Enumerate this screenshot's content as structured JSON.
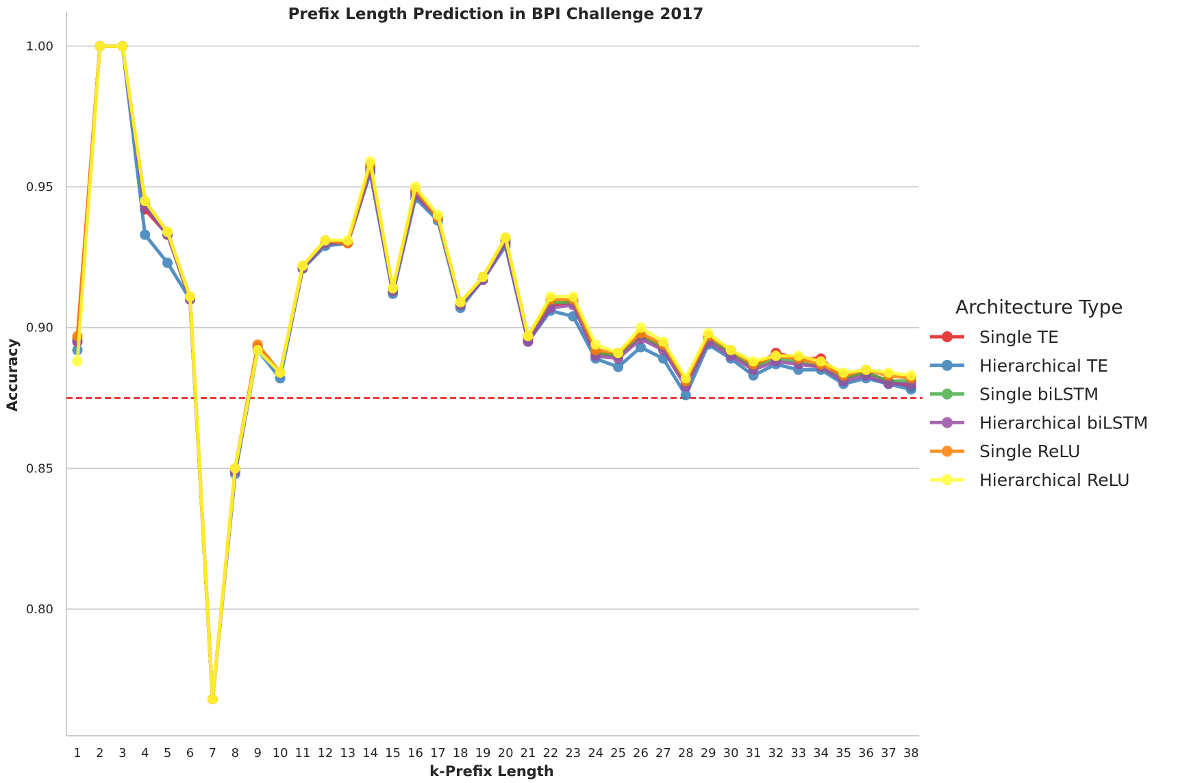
{
  "chart_data": {
    "type": "line",
    "title": "Prefix Length Prediction in BPI Challenge 2017",
    "xlabel": "k-Prefix Length",
    "ylabel": "Accuracy",
    "ylim": [
      0.755,
      1.012
    ],
    "yticks": [
      0.8,
      0.85,
      0.9,
      0.95,
      1.0
    ],
    "ytick_labels": [
      "0.80",
      "0.85",
      "0.90",
      "0.95",
      "1.00"
    ],
    "grid": "horizontal",
    "legend_title": "Architecture Type",
    "legend_position": "right",
    "reference_line": {
      "y": 0.875,
      "color": "#ee1111",
      "style": "dashed"
    },
    "x": [
      "1",
      "2",
      "3",
      "4",
      "5",
      "6",
      "7",
      "8",
      "9",
      "10",
      "11",
      "12",
      "13",
      "14",
      "15",
      "16",
      "17",
      "18",
      "19",
      "20",
      "21",
      "22",
      "23",
      "24",
      "25",
      "26",
      "27",
      "28",
      "29",
      "30",
      "31",
      "32",
      "33",
      "34",
      "35",
      "36",
      "37",
      "38"
    ],
    "series": [
      {
        "name": "Single TE",
        "color": "#e41a1c",
        "values": [
          0.895,
          1.0,
          1.0,
          0.942,
          0.933,
          0.91,
          0.768,
          0.849,
          0.893,
          0.884,
          0.921,
          0.93,
          0.93,
          0.957,
          0.913,
          0.948,
          0.939,
          0.908,
          0.917,
          0.931,
          0.896,
          0.908,
          0.909,
          0.891,
          0.89,
          0.897,
          0.893,
          0.88,
          0.896,
          0.891,
          0.886,
          0.891,
          0.889,
          0.889,
          0.882,
          0.884,
          0.881,
          0.879
        ]
      },
      {
        "name": "Hierarchical TE",
        "color": "#377eb8",
        "values": [
          0.892,
          1.0,
          1.0,
          0.933,
          0.923,
          0.91,
          0.768,
          0.848,
          0.892,
          0.882,
          0.921,
          0.929,
          0.93,
          0.955,
          0.912,
          0.946,
          0.938,
          0.907,
          0.917,
          0.929,
          0.895,
          0.906,
          0.904,
          0.889,
          0.886,
          0.893,
          0.889,
          0.876,
          0.894,
          0.889,
          0.883,
          0.887,
          0.885,
          0.885,
          0.88,
          0.882,
          0.88,
          0.878
        ]
      },
      {
        "name": "Single biLSTM",
        "color": "#4daf4a",
        "values": [
          0.896,
          1.0,
          1.0,
          0.944,
          0.933,
          0.91,
          0.768,
          0.849,
          0.893,
          0.884,
          0.921,
          0.93,
          0.93,
          0.957,
          0.913,
          0.948,
          0.939,
          0.908,
          0.918,
          0.931,
          0.897,
          0.909,
          0.909,
          0.891,
          0.89,
          0.897,
          0.893,
          0.88,
          0.896,
          0.891,
          0.886,
          0.889,
          0.888,
          0.886,
          0.882,
          0.884,
          0.881,
          0.881
        ]
      },
      {
        "name": "Hierarchical biLSTM",
        "color": "#984ea3",
        "values": [
          0.895,
          1.0,
          1.0,
          0.943,
          0.933,
          0.91,
          0.768,
          0.849,
          0.893,
          0.884,
          0.921,
          0.93,
          0.93,
          0.956,
          0.913,
          0.947,
          0.939,
          0.908,
          0.917,
          0.93,
          0.895,
          0.907,
          0.908,
          0.89,
          0.889,
          0.896,
          0.892,
          0.879,
          0.895,
          0.89,
          0.885,
          0.888,
          0.887,
          0.886,
          0.881,
          0.883,
          0.88,
          0.88
        ]
      },
      {
        "name": "Single ReLU",
        "color": "#ff7f00",
        "values": [
          0.897,
          1.0,
          1.0,
          0.945,
          0.934,
          0.911,
          0.768,
          0.85,
          0.894,
          0.884,
          0.922,
          0.931,
          0.93,
          0.958,
          0.914,
          0.949,
          0.939,
          0.909,
          0.918,
          0.932,
          0.897,
          0.91,
          0.91,
          0.892,
          0.891,
          0.898,
          0.894,
          0.881,
          0.897,
          0.892,
          0.887,
          0.89,
          0.889,
          0.887,
          0.883,
          0.885,
          0.883,
          0.882
        ]
      },
      {
        "name": "Hierarchical ReLU",
        "color": "#ffff33",
        "values": [
          0.888,
          1.0,
          1.0,
          0.945,
          0.934,
          0.911,
          0.768,
          0.85,
          0.892,
          0.884,
          0.922,
          0.931,
          0.931,
          0.959,
          0.914,
          0.95,
          0.94,
          0.909,
          0.918,
          0.932,
          0.897,
          0.911,
          0.911,
          0.894,
          0.891,
          0.9,
          0.895,
          0.882,
          0.898,
          0.892,
          0.888,
          0.89,
          0.89,
          0.888,
          0.884,
          0.885,
          0.884,
          0.883
        ]
      }
    ]
  }
}
